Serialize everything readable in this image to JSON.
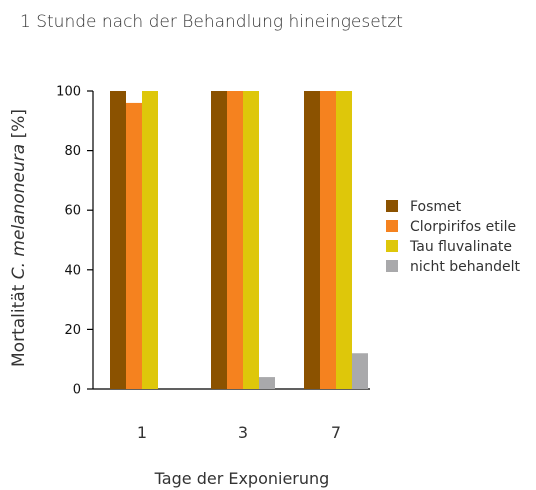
{
  "chart_data": {
    "type": "bar",
    "title": "1 Stunde nach der Behandlung hineingesetzt",
    "xlabel": "Tage der Exponierung",
    "ylabel_prefix": "Mortalität ",
    "ylabel_italic": "C. melanoneura",
    "ylabel_suffix": " [%]",
    "categories": [
      "1",
      "3",
      "7"
    ],
    "ylim": [
      0,
      100
    ],
    "yticks": [
      0,
      20,
      40,
      60,
      80,
      100
    ],
    "legend_position": "right",
    "series": [
      {
        "name": "Fosmet",
        "color": "#8B5200",
        "values": [
          100,
          100,
          100
        ]
      },
      {
        "name": "Clorpirifos etile",
        "color": "#F5821F",
        "values": [
          96,
          100,
          100
        ]
      },
      {
        "name": "Tau fluvalinate",
        "color": "#DEC70A",
        "values": [
          100,
          100,
          100
        ]
      },
      {
        "name": "nicht behandelt",
        "color": "#A9A9AB",
        "values": [
          0,
          4,
          12
        ]
      }
    ]
  }
}
